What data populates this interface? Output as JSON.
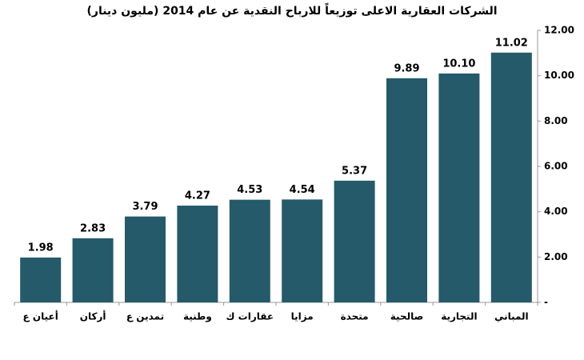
{
  "chart_data": {
    "type": "bar",
    "title": "الشركات العقارية الاعلى توزيعاً للارباح النقدية عن عام 2014 (مليون دينار)",
    "categories": [
      "أعيان ع",
      "أركان",
      "تمدين ع",
      "وطنية",
      "عقارات ك",
      "مزايا",
      "متحدة",
      "صالحية",
      "التجارية",
      "المباني"
    ],
    "values": [
      1.98,
      2.83,
      3.79,
      4.27,
      4.53,
      4.54,
      5.37,
      9.89,
      10.1,
      11.02
    ],
    "value_labels": [
      "1.98",
      "2.83",
      "3.79",
      "4.27",
      "4.53",
      "4.54",
      "5.37",
      "9.89",
      "10.10",
      "11.02"
    ],
    "color": "#245a6a",
    "ylim": [
      0,
      12
    ],
    "yticks": [
      {
        "value": 0,
        "label": "-"
      },
      {
        "value": 2,
        "label": "2.00"
      },
      {
        "value": 4,
        "label": "4.00"
      },
      {
        "value": 6,
        "label": "6.00"
      },
      {
        "value": 8,
        "label": "8.00"
      },
      {
        "value": 10,
        "label": "10.00"
      },
      {
        "value": 12,
        "label": "12.00"
      }
    ],
    "grid": false
  }
}
